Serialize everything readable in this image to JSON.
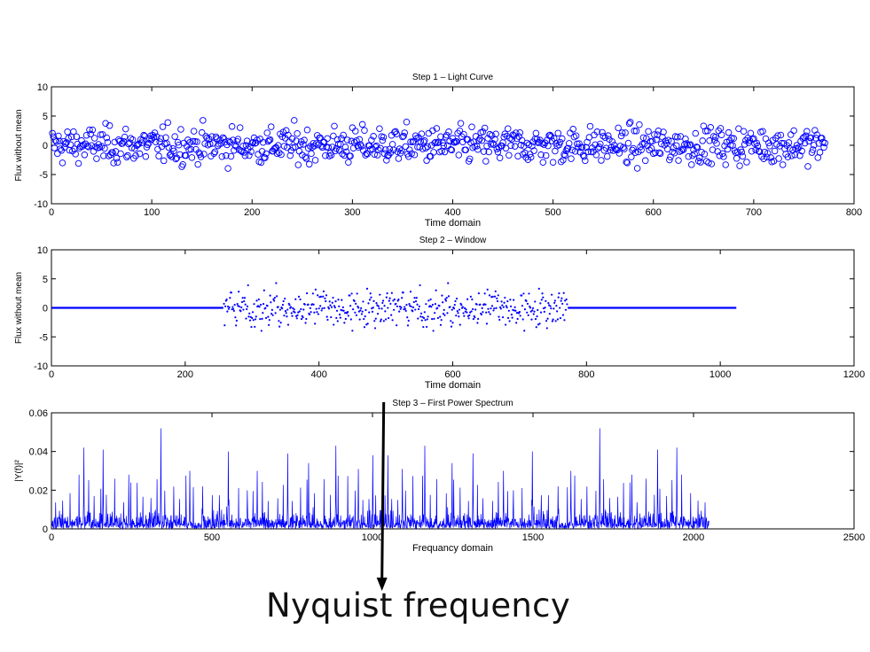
{
  "colors": {
    "series": "#0000ff",
    "axis": "#000000",
    "arrow": "#000000"
  },
  "annotation": {
    "label": "Nyquist frequency",
    "x_value": 1024
  },
  "chart_data": [
    {
      "id": "light-curve",
      "type": "scatter",
      "marker": "circle",
      "title": "Step 1 – Light Curve",
      "xlabel": "Time domain",
      "ylabel": "Flux without mean",
      "xlim": [
        0,
        800
      ],
      "ylim": [
        -10,
        10
      ],
      "xticks": [
        0,
        100,
        200,
        300,
        400,
        500,
        600,
        700,
        800
      ],
      "yticks": [
        -10,
        -5,
        0,
        5,
        10
      ],
      "grid": false,
      "series": [
        {
          "x_range": [
            1,
            771
          ],
          "distribution": "approximately normal, mean 0, sd about 2",
          "y_range": [
            -6.8,
            6.5
          ]
        }
      ]
    },
    {
      "id": "window",
      "type": "scatter",
      "marker": "dot",
      "title": "Step 2 – Window",
      "xlabel": "Time domain",
      "ylabel": "Flux without mean",
      "xlim": [
        0,
        1200
      ],
      "ylim": [
        -10,
        10
      ],
      "xticks": [
        0,
        200,
        400,
        600,
        800,
        1000,
        1200
      ],
      "yticks": [
        -10,
        -5,
        0,
        5,
        10
      ],
      "grid": false,
      "series": [
        {
          "padded_zero_ranges": [
            [
              0,
              257
            ],
            [
              772,
              1024
            ]
          ],
          "data_range": [
            258,
            771
          ],
          "y_range": [
            -6.0,
            5.5
          ]
        }
      ]
    },
    {
      "id": "power-spectrum",
      "type": "line",
      "title": "Step 3 – First Power Spectrum",
      "xlabel": "Frequancy domain",
      "ylabel": "|Y(f)|²",
      "xlim": [
        0,
        2500
      ],
      "ylim": [
        0,
        0.06
      ],
      "xticks": [
        0,
        500,
        1000,
        1500,
        2000,
        2500
      ],
      "yticks": [
        0,
        0.02,
        0.04,
        0.06
      ],
      "ytick_labels": [
        "0",
        "0.02",
        "0.04",
        "0.06"
      ],
      "grid": false,
      "series": [
        {
          "x_range": [
            1,
            2048
          ],
          "symmetric_about": 1024,
          "peaks": [
            {
              "x": 100,
              "y": 0.042
            },
            {
              "x": 160,
              "y": 0.041
            },
            {
              "x": 240,
              "y": 0.028
            },
            {
              "x": 340,
              "y": 0.052
            },
            {
              "x": 430,
              "y": 0.03
            },
            {
              "x": 470,
              "y": 0.022
            },
            {
              "x": 550,
              "y": 0.04
            },
            {
              "x": 640,
              "y": 0.03
            },
            {
              "x": 735,
              "y": 0.039
            },
            {
              "x": 800,
              "y": 0.034
            },
            {
              "x": 885,
              "y": 0.043
            },
            {
              "x": 955,
              "y": 0.031
            },
            {
              "x": 1000,
              "y": 0.038
            }
          ]
        }
      ]
    }
  ]
}
